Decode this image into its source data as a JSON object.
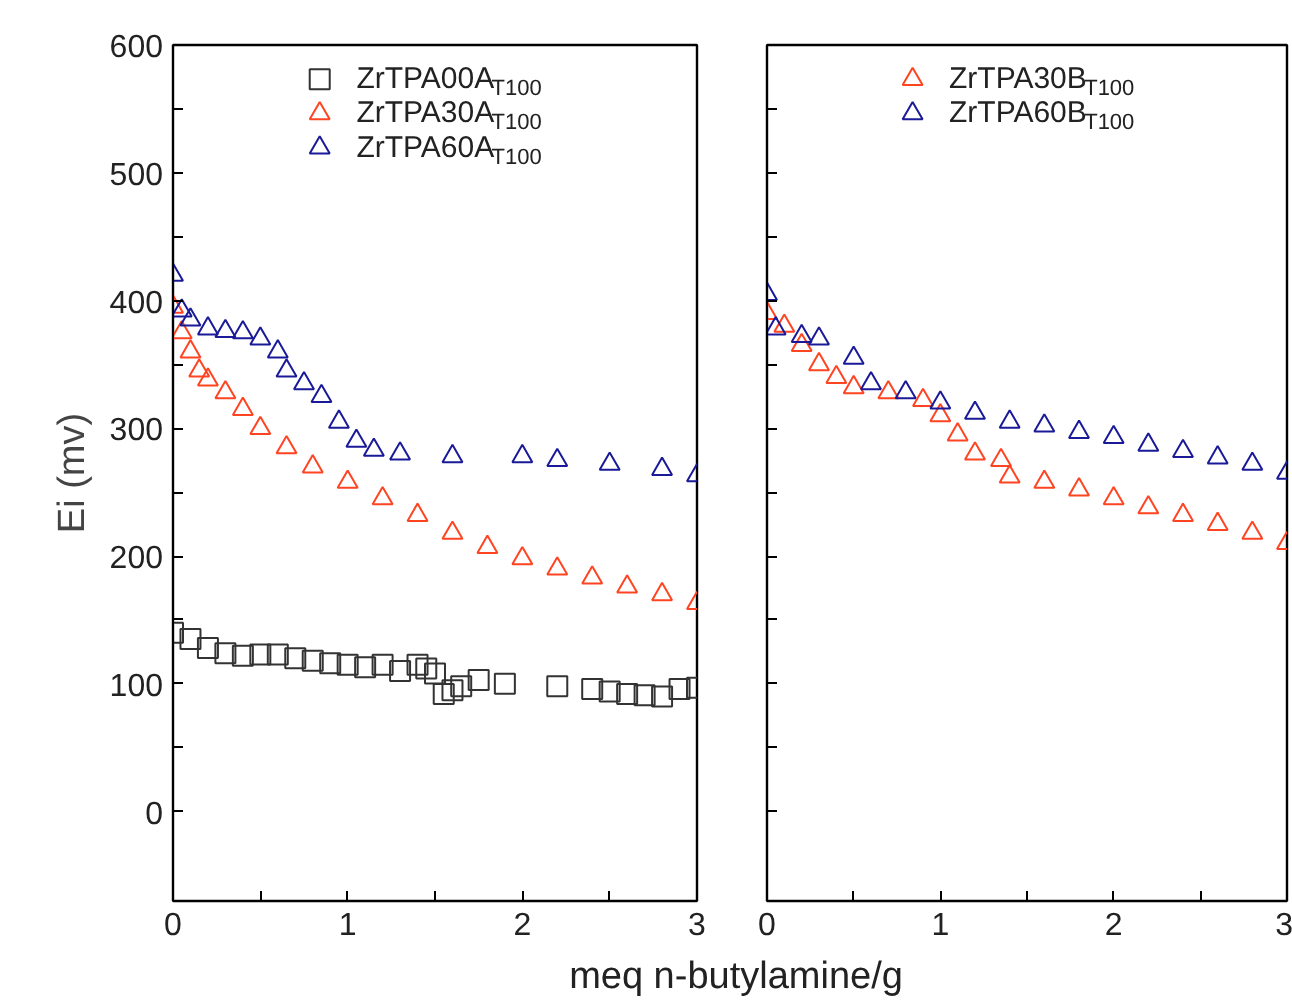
{
  "chart_data": [
    {
      "type": "scatter",
      "ylabel": "Ei (mv)",
      "xlabel": "meq n-butylamine/g",
      "xlim": [
        0,
        3
      ],
      "ylim": [
        -70,
        600
      ],
      "xticks": [
        0,
        {
          "value": 0.5,
          "label": null
        },
        1,
        {
          "value": 1.5,
          "label": null
        },
        2,
        {
          "value": 2.5,
          "label": null
        },
        3
      ],
      "yticks": [
        0,
        {
          "value": 50,
          "label": null
        },
        100,
        {
          "value": 150,
          "label": null
        },
        200,
        {
          "value": 250,
          "label": null
        },
        300,
        {
          "value": 350,
          "label": null
        },
        400,
        {
          "value": 450,
          "label": null
        },
        500,
        {
          "value": 550,
          "label": null
        },
        600
      ],
      "grid": false,
      "legend": "top",
      "series": [
        {
          "name": "ZrTPA00A$_{T100}$",
          "color": "#333333",
          "marker": "square",
          "x": [
            0,
            0.1,
            0.2,
            0.3,
            0.4,
            0.5,
            0.6,
            0.7,
            0.8,
            0.9,
            1.0,
            1.1,
            1.2,
            1.3,
            1.4,
            1.45,
            1.5,
            1.55,
            1.6,
            1.65,
            1.75,
            1.9,
            2.2,
            2.4,
            2.5,
            2.6,
            2.7,
            2.8,
            2.9,
            3.0
          ],
          "values": [
            140,
            135,
            128,
            124,
            122,
            123,
            123,
            120,
            118,
            116,
            115,
            113,
            115,
            110,
            115,
            112,
            108,
            92,
            95,
            98,
            103,
            100,
            98,
            96,
            94,
            92,
            91,
            90,
            96,
            97
          ]
        },
        {
          "name": "ZrTPA30A$_{T100}$",
          "color": "#ff4422",
          "marker": "triangle",
          "x": [
            0,
            0.05,
            0.1,
            0.15,
            0.2,
            0.3,
            0.4,
            0.5,
            0.65,
            0.8,
            1.0,
            1.2,
            1.4,
            1.6,
            1.8,
            2.0,
            2.2,
            2.4,
            2.6,
            2.8,
            3.0
          ],
          "values": [
            395,
            375,
            360,
            345,
            338,
            328,
            315,
            300,
            285,
            270,
            258,
            245,
            232,
            218,
            207,
            198,
            190,
            183,
            176,
            170,
            163
          ]
        },
        {
          "name": "ZrTPA60A$_{T100}$",
          "color": "#1a1a99",
          "marker": "triangle",
          "x": [
            0,
            0.05,
            0.1,
            0.2,
            0.3,
            0.4,
            0.5,
            0.6,
            0.65,
            0.75,
            0.85,
            0.95,
            1.05,
            1.15,
            1.3,
            1.6,
            2.0,
            2.2,
            2.5,
            2.8,
            3.0
          ],
          "values": [
            420,
            392,
            385,
            378,
            376,
            375,
            370,
            360,
            345,
            335,
            325,
            305,
            290,
            283,
            280,
            278,
            278,
            275,
            272,
            268,
            263
          ]
        }
      ]
    },
    {
      "type": "scatter",
      "xlim": [
        0,
        3
      ],
      "ylim": [
        -70,
        600
      ],
      "tick_labels": "x",
      "xticks": [
        0,
        {
          "value": 0.5,
          "label": null
        },
        1,
        {
          "value": 1.5,
          "label": null
        },
        2,
        {
          "value": 2.5,
          "label": null
        },
        3
      ],
      "yticks": [
        {
          "value": 0,
          "label": null
        },
        {
          "value": 50,
          "label": null
        },
        {
          "value": 100,
          "label": null
        },
        {
          "value": 150,
          "label": null
        },
        {
          "value": 200,
          "label": null
        },
        {
          "value": 250,
          "label": null
        },
        {
          "value": 300,
          "label": null
        },
        {
          "value": 350,
          "label": null
        },
        {
          "value": 400,
          "label": null
        },
        {
          "value": 450,
          "label": null
        },
        {
          "value": 500,
          "label": null
        },
        {
          "value": 550,
          "label": null
        },
        {
          "value": 600,
          "label": null
        }
      ],
      "grid": false,
      "legend": "top",
      "series": [
        {
          "name": "ZrTPA30B$_{T100}$",
          "color": "#ff4422",
          "marker": "triangle",
          "x": [
            0,
            0.1,
            0.2,
            0.3,
            0.4,
            0.5,
            0.7,
            0.9,
            1.0,
            1.1,
            1.2,
            1.35,
            1.4,
            1.6,
            1.8,
            2.0,
            2.2,
            2.4,
            2.6,
            2.8,
            3.0
          ],
          "values": [
            390,
            380,
            365,
            350,
            340,
            332,
            328,
            322,
            310,
            295,
            280,
            275,
            262,
            258,
            252,
            245,
            238,
            232,
            225,
            218,
            210
          ]
        },
        {
          "name": "ZrTPA60B$_{T100}$",
          "color": "#1a1a99",
          "marker": "triangle",
          "x": [
            0,
            0.05,
            0.2,
            0.3,
            0.5,
            0.6,
            0.8,
            1.0,
            1.2,
            1.4,
            1.6,
            1.8,
            2.0,
            2.2,
            2.4,
            2.6,
            2.8,
            3.0
          ],
          "values": [
            405,
            378,
            372,
            370,
            355,
            335,
            328,
            320,
            312,
            305,
            302,
            297,
            293,
            287,
            282,
            277,
            272,
            265
          ]
        }
      ]
    }
  ]
}
